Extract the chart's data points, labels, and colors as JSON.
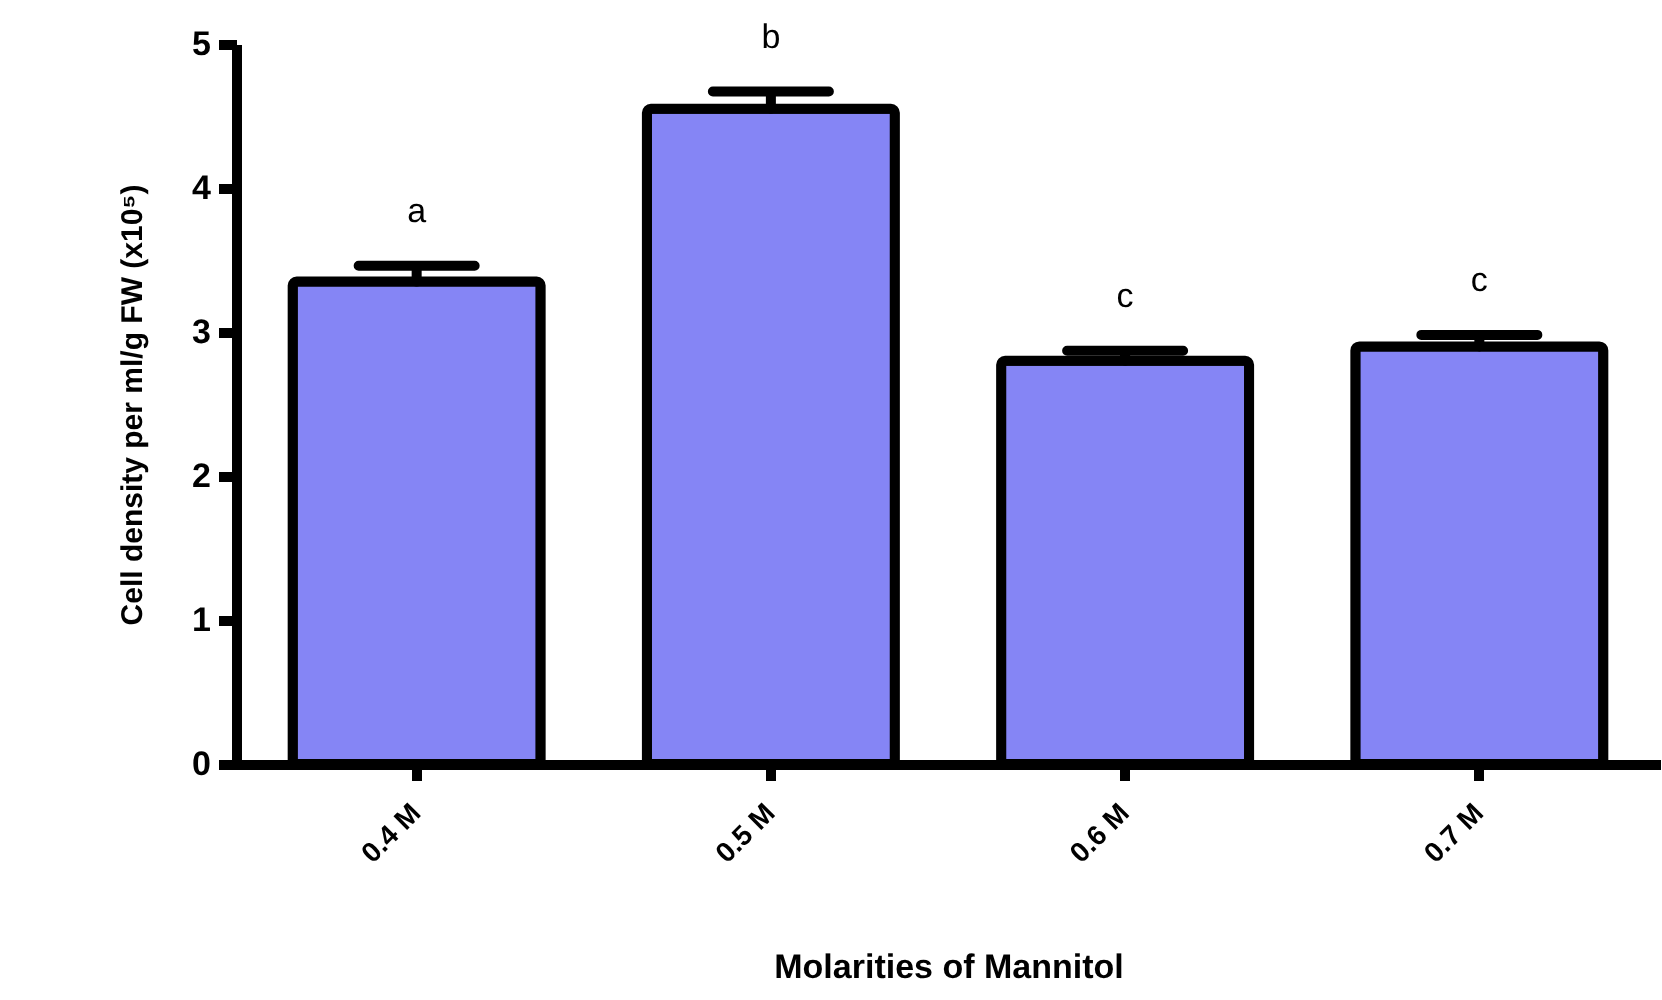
{
  "chart_data": {
    "type": "bar",
    "xlabel": "Molarities of Mannitol",
    "ylabel": "Cell density per ml/g FW (x10⁵)",
    "categories": [
      "0.4 M",
      "0.5 M",
      "0.6 M",
      "0.7 M"
    ],
    "values": [
      3.35,
      4.55,
      2.8,
      2.9
    ],
    "color": "#8585f5",
    "errors": [
      [
        3.35,
        3.46
      ],
      [
        4.55,
        4.67
      ],
      [
        2.8,
        2.87
      ],
      [
        2.9,
        2.98
      ]
    ],
    "ylim": [
      0,
      5
    ],
    "yticks": [
      0,
      1,
      2,
      3,
      4,
      5
    ],
    "grid": false,
    "annotations": [
      "a",
      "b",
      "c",
      "c"
    ]
  }
}
